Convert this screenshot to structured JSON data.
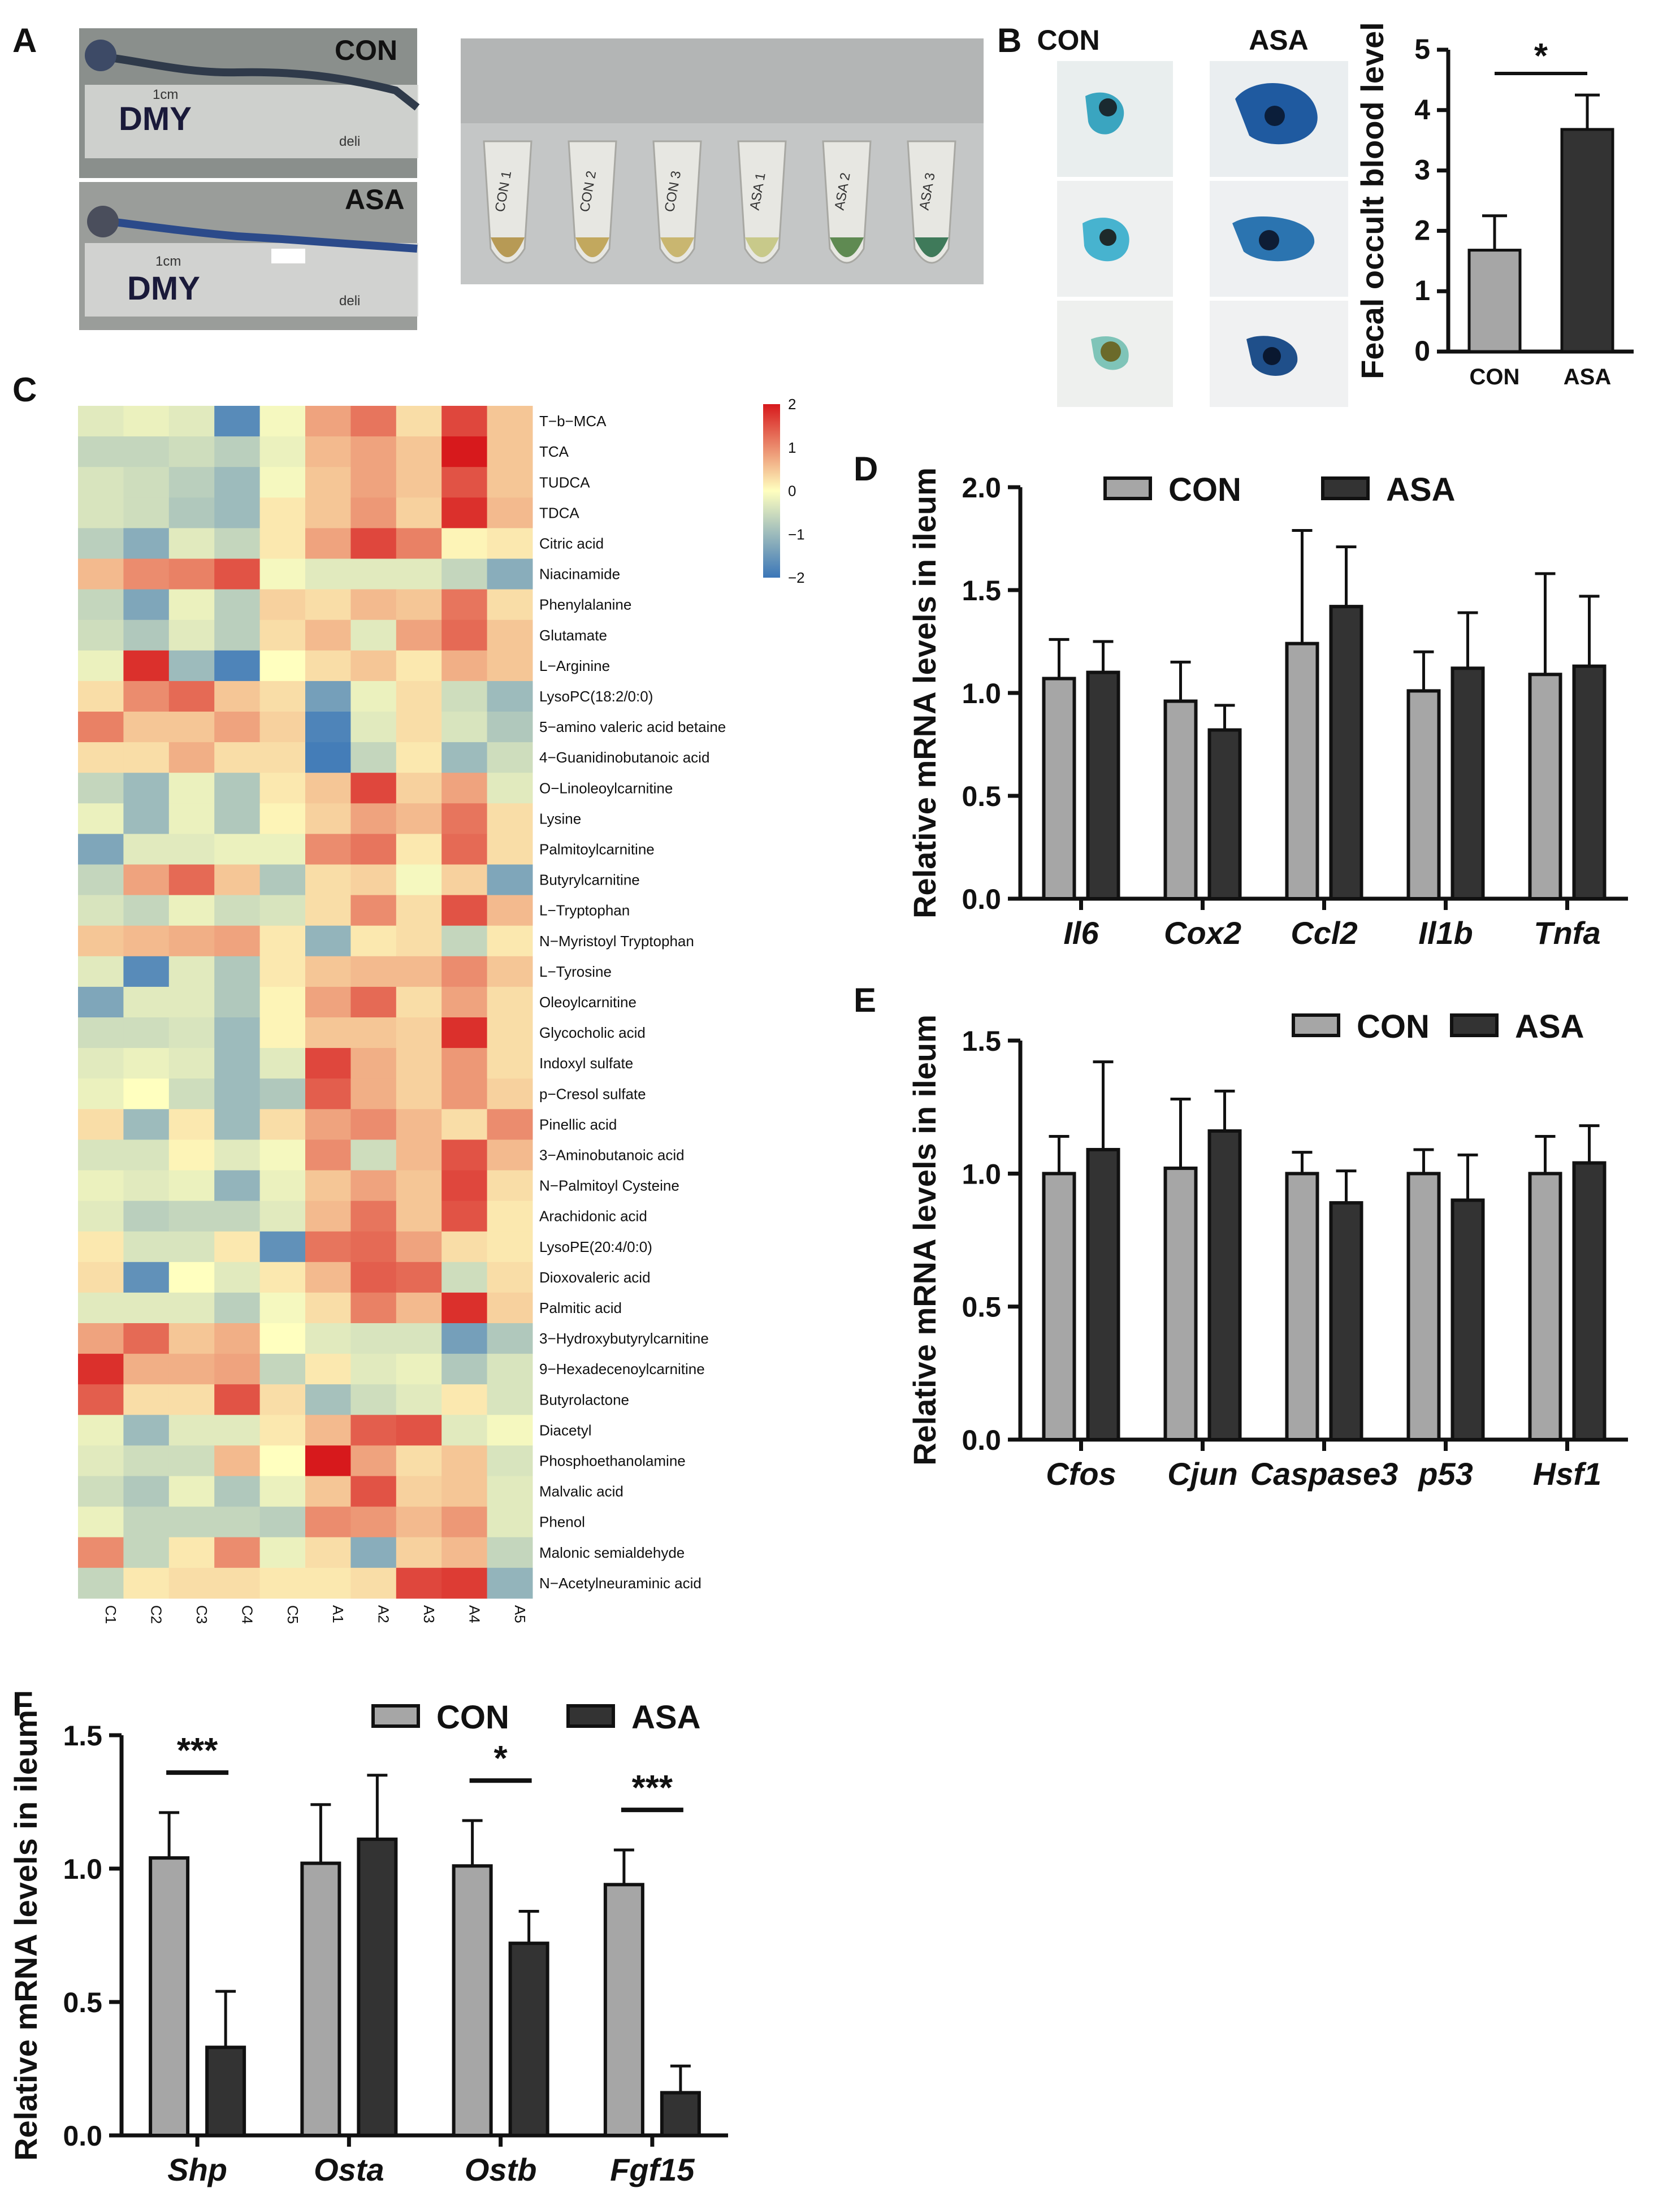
{
  "panels": {
    "A": "A",
    "B": "B",
    "C": "C",
    "D": "D",
    "E": "E",
    "F": "F"
  },
  "panel_a": {
    "top_label": "CON",
    "bottom_label": "ASA",
    "ruler_text": "DMY",
    "ruler_brand": "deli",
    "ruler_unit": "1cm",
    "tube_labels": [
      "CON 1",
      "CON 2",
      "CON 3",
      "ASA 1",
      "ASA 2",
      "ASA 3"
    ]
  },
  "panel_b": {
    "col_labels": [
      "CON",
      "ASA"
    ]
  },
  "colors": {
    "con_bar": "#a6a6a6",
    "asa_bar": "#333333",
    "heat_low": "#3a76b8",
    "heat_mid": "#ffffbf",
    "heat_high": "#d7191c"
  },
  "chart_data": [
    {
      "id": "B",
      "type": "bar",
      "categories": [
        "CON",
        "ASA"
      ],
      "values": [
        1.68,
        3.68
      ],
      "errors": [
        0.57,
        0.57
      ],
      "ylabel": "Fecal occult blood level",
      "ylim": [
        0,
        5
      ],
      "yticks": [
        "0",
        "1",
        "2",
        "3",
        "4",
        "5"
      ],
      "annotations": [
        {
          "between": [
            "CON",
            "ASA"
          ],
          "text": "*"
        }
      ]
    },
    {
      "id": "C",
      "type": "heatmap",
      "rows": [
        "T−b−MCA",
        "TCA",
        "TUDCA",
        "TDCA",
        "Citric acid",
        "Niacinamide",
        "Phenylalanine",
        "Glutamate",
        "L−Arginine",
        "LysoPC(18:2/0:0)",
        "5−amino valeric acid betaine",
        "4−Guanidinobutanoic acid",
        "O−Linoleoylcarnitine",
        "Lysine",
        "Palmitoylcarnitine",
        "Butyrylcarnitine",
        "L−Tryptophan",
        "N−Myristoyl Tryptophan",
        "L−Tyrosine",
        "Oleoylcarnitine",
        "Glycocholic acid",
        "Indoxyl sulfate",
        "p−Cresol sulfate",
        "Pinellic acid",
        "3−Aminobutanoic acid",
        "N−Palmitoyl Cysteine",
        "Arachidonic acid",
        "LysoPE(20:4/0:0)",
        "Dioxovaleric acid",
        "Palmitic acid",
        "3−Hydroxybutyrylcarnitine",
        "9−Hexadecenoylcarnitine",
        "Butyrolactone",
        "Diacetyl",
        "Phosphoethanolamine",
        "Malvalic acid",
        "Phenol",
        "Malonic semialdehyde",
        "N−Acetylneuraminic acid"
      ],
      "columns": [
        "C1",
        "C2",
        "C3",
        "C4",
        "C5",
        "A1",
        "A2",
        "A3",
        "A4",
        "A5"
      ],
      "colorbar_ticks": [
        "2",
        "1",
        "0",
        "−1",
        "−2"
      ],
      "range": [
        -2,
        2
      ],
      "values": [
        [
          -0.3,
          -0.2,
          -0.3,
          -1.7,
          -0.1,
          0.8,
          1.2,
          0.3,
          1.6,
          0.5
        ],
        [
          -0.6,
          -0.6,
          -0.5,
          -0.7,
          -0.2,
          0.6,
          0.8,
          0.5,
          2.0,
          0.5
        ],
        [
          -0.4,
          -0.5,
          -0.7,
          -1.0,
          -0.1,
          0.5,
          0.8,
          0.5,
          1.5,
          0.5
        ],
        [
          -0.4,
          -0.5,
          -0.8,
          -1.0,
          0.2,
          0.5,
          0.9,
          0.4,
          1.8,
          0.6
        ],
        [
          -0.7,
          -1.2,
          -0.3,
          -0.6,
          0.2,
          0.8,
          1.6,
          1.1,
          0.1,
          0.2
        ],
        [
          0.6,
          1.0,
          1.1,
          1.5,
          -0.1,
          -0.3,
          -0.3,
          -0.3,
          -0.6,
          -1.2
        ],
        [
          -0.6,
          -1.3,
          -0.2,
          -0.7,
          0.4,
          0.3,
          0.6,
          0.5,
          1.2,
          0.3
        ],
        [
          -0.5,
          -0.8,
          -0.3,
          -0.7,
          0.3,
          0.6,
          -0.3,
          0.8,
          1.3,
          0.5
        ],
        [
          -0.2,
          1.8,
          -1.0,
          -1.8,
          0.0,
          0.3,
          0.5,
          0.2,
          0.7,
          0.5
        ],
        [
          0.3,
          1.0,
          1.3,
          0.5,
          0.3,
          -1.4,
          -0.2,
          0.3,
          -0.5,
          -1.0
        ],
        [
          1.1,
          0.5,
          0.5,
          0.8,
          0.4,
          -1.8,
          -0.3,
          0.3,
          -0.4,
          -0.8
        ],
        [
          0.3,
          0.3,
          0.7,
          0.3,
          0.3,
          -1.9,
          -0.6,
          0.2,
          -1.0,
          -0.5
        ],
        [
          -0.6,
          -1.0,
          -0.2,
          -0.8,
          0.2,
          0.5,
          1.6,
          0.4,
          0.8,
          -0.3
        ],
        [
          -0.2,
          -1.0,
          -0.2,
          -0.8,
          0.1,
          0.4,
          0.8,
          0.6,
          1.2,
          0.3
        ],
        [
          -1.3,
          -0.3,
          -0.3,
          -0.2,
          -0.2,
          1.0,
          1.2,
          0.2,
          1.3,
          0.3
        ],
        [
          -0.6,
          0.8,
          1.3,
          0.5,
          -0.8,
          0.3,
          0.4,
          -0.1,
          0.4,
          -1.3
        ],
        [
          -0.4,
          -0.6,
          -0.2,
          -0.5,
          -0.4,
          0.3,
          1.0,
          0.3,
          1.5,
          0.6
        ],
        [
          0.5,
          0.6,
          0.7,
          0.8,
          0.2,
          -1.1,
          0.2,
          0.3,
          -0.6,
          0.2
        ],
        [
          -0.3,
          -1.7,
          -0.3,
          -0.8,
          0.2,
          0.5,
          0.6,
          0.6,
          1.0,
          0.5
        ],
        [
          -1.3,
          -0.3,
          -0.3,
          -0.8,
          0.1,
          0.8,
          1.3,
          0.3,
          0.8,
          0.3
        ],
        [
          -0.5,
          -0.5,
          -0.4,
          -1.0,
          0.1,
          0.5,
          0.5,
          0.4,
          1.8,
          0.3
        ],
        [
          -0.3,
          -0.2,
          -0.3,
          -1.0,
          -0.3,
          1.6,
          0.7,
          0.4,
          0.9,
          0.3
        ],
        [
          -0.2,
          0.0,
          -0.5,
          -1.0,
          -0.8,
          1.4,
          0.7,
          0.4,
          0.9,
          0.4
        ],
        [
          0.3,
          -1.0,
          0.2,
          -1.0,
          0.3,
          0.8,
          1.0,
          0.6,
          0.3,
          1.0
        ],
        [
          -0.4,
          -0.4,
          0.1,
          -0.3,
          -0.1,
          1.0,
          -0.5,
          0.6,
          1.5,
          0.6
        ],
        [
          -0.2,
          -0.3,
          -0.2,
          -1.1,
          -0.2,
          0.5,
          0.8,
          0.5,
          1.6,
          0.3
        ],
        [
          -0.3,
          -0.7,
          -0.6,
          -0.6,
          -0.3,
          0.6,
          1.2,
          0.5,
          1.5,
          0.2
        ],
        [
          0.2,
          -0.4,
          -0.4,
          0.2,
          -1.6,
          1.2,
          1.3,
          0.8,
          0.3,
          0.2
        ],
        [
          0.3,
          -1.6,
          0.0,
          -0.3,
          0.2,
          0.6,
          1.4,
          1.3,
          -0.5,
          0.3
        ],
        [
          -0.3,
          -0.3,
          -0.3,
          -0.7,
          -0.1,
          0.3,
          1.1,
          0.6,
          1.8,
          0.4
        ],
        [
          0.8,
          1.3,
          0.5,
          0.7,
          0.0,
          -0.3,
          -0.4,
          -0.4,
          -1.4,
          -0.8
        ],
        [
          1.8,
          0.7,
          0.7,
          0.8,
          -0.6,
          0.2,
          -0.3,
          -0.2,
          -0.8,
          -0.4
        ],
        [
          1.4,
          0.3,
          0.3,
          1.5,
          0.3,
          -0.9,
          -0.5,
          -0.3,
          0.2,
          -0.4
        ],
        [
          -0.2,
          -1.0,
          -0.3,
          -0.3,
          0.2,
          0.6,
          1.4,
          1.5,
          -0.3,
          -0.1
        ],
        [
          -0.3,
          -0.5,
          -0.5,
          0.6,
          0.0,
          2.0,
          0.8,
          0.3,
          0.5,
          -0.4
        ],
        [
          -0.5,
          -0.8,
          -0.2,
          -0.8,
          -0.2,
          0.5,
          1.5,
          0.4,
          0.5,
          -0.3
        ],
        [
          -0.2,
          -0.6,
          -0.6,
          -0.6,
          -0.7,
          1.0,
          0.9,
          0.6,
          0.9,
          -0.3
        ],
        [
          1.0,
          -0.6,
          0.2,
          1.0,
          -0.2,
          0.3,
          -1.2,
          0.4,
          0.6,
          -0.6
        ],
        [
          -0.6,
          0.2,
          0.3,
          0.3,
          0.2,
          0.2,
          0.3,
          1.6,
          1.7,
          -1.1
        ]
      ]
    },
    {
      "id": "D",
      "type": "bar",
      "categories": [
        "Il6",
        "Cox2",
        "Ccl2",
        "Il1b",
        "Tnfa"
      ],
      "series": [
        {
          "name": "CON",
          "values": [
            1.07,
            0.96,
            1.24,
            1.01,
            1.09
          ],
          "errors": [
            0.19,
            0.19,
            0.55,
            0.19,
            0.49
          ]
        },
        {
          "name": "ASA",
          "values": [
            1.1,
            0.82,
            1.42,
            1.12,
            1.13
          ],
          "errors": [
            0.15,
            0.12,
            0.29,
            0.27,
            0.34
          ]
        }
      ],
      "ylabel": "Relative mRNA levels in ileum",
      "ylim": [
        0,
        2.0
      ],
      "yticks": [
        "0.0",
        "0.5",
        "1.0",
        "1.5",
        "2.0"
      ]
    },
    {
      "id": "E",
      "type": "bar",
      "categories": [
        "Cfos",
        "Cjun",
        "Caspase3",
        "p53",
        "Hsf1"
      ],
      "series": [
        {
          "name": "CON",
          "values": [
            1.0,
            1.02,
            1.0,
            1.0,
            1.0
          ],
          "errors": [
            0.14,
            0.26,
            0.08,
            0.09,
            0.14
          ]
        },
        {
          "name": "ASA",
          "values": [
            1.09,
            1.16,
            0.89,
            0.9,
            1.04
          ],
          "errors": [
            0.33,
            0.15,
            0.12,
            0.17,
            0.14
          ]
        }
      ],
      "ylabel": "Relative mRNA levels in ileum",
      "ylim": [
        0,
        1.5
      ],
      "yticks": [
        "0.0",
        "0.5",
        "1.0",
        "1.5"
      ]
    },
    {
      "id": "F",
      "type": "bar",
      "categories": [
        "Shp",
        "Osta",
        "Ostb",
        "Fgf15"
      ],
      "series": [
        {
          "name": "CON",
          "values": [
            1.04,
            1.02,
            1.01,
            0.94
          ],
          "errors": [
            0.17,
            0.22,
            0.17,
            0.13
          ]
        },
        {
          "name": "ASA",
          "values": [
            0.33,
            1.11,
            0.72,
            0.16
          ],
          "errors": [
            0.21,
            0.24,
            0.12,
            0.1
          ]
        }
      ],
      "ylabel": "Relative mRNA levels in ileum",
      "ylim": [
        0,
        1.5
      ],
      "yticks": [
        "0.0",
        "0.5",
        "1.0",
        "1.5"
      ],
      "annotations": [
        {
          "category": "Shp",
          "text": "***"
        },
        {
          "category": "Ostb",
          "text": "*"
        },
        {
          "category": "Fgf15",
          "text": "***"
        }
      ]
    }
  ]
}
